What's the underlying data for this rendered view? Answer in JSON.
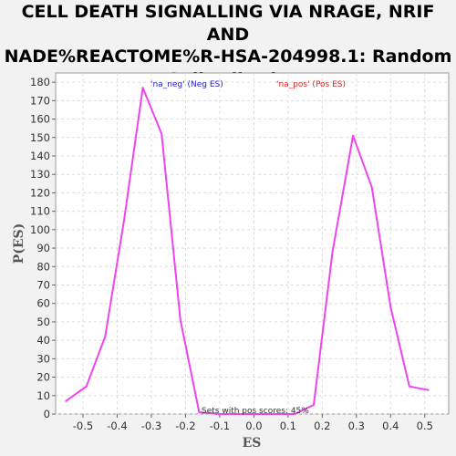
{
  "chart_data": {
    "type": "line",
    "title_lines": [
      "CELL DEATH SIGNALLING VIA NRAGE, NRIF AND",
      "NADE%REACTOME%R-HSA-204998.1: Random",
      "ES distribution"
    ],
    "xlabel": "ES",
    "ylabel": "P(ES)",
    "xlim": [
      -0.58,
      0.57
    ],
    "ylim": [
      0,
      185
    ],
    "x_ticks": [
      "-0.5",
      "-0.4",
      "-0.3",
      "-0.2",
      "-0.1",
      "0.0",
      "0.1",
      "0.2",
      "0.3",
      "0.4",
      "0.5"
    ],
    "y_ticks": [
      "0",
      "10",
      "20",
      "30",
      "40",
      "50",
      "60",
      "70",
      "80",
      "90",
      "100",
      "110",
      "120",
      "130",
      "140",
      "150",
      "160",
      "170",
      "180"
    ],
    "grid": true,
    "legend": [
      {
        "label": "'na_neg' (Neg ES)",
        "color": "#2222cc"
      },
      {
        "label": "'na_pos' (Pos ES)",
        "color": "#dd2222"
      }
    ],
    "annotation": "Sets with pos scores: 45%",
    "series": [
      {
        "color": "#ee44ee",
        "points": [
          [
            -0.55,
            7
          ],
          [
            -0.49,
            15
          ],
          [
            -0.435,
            42
          ],
          [
            -0.38,
            105
          ],
          [
            -0.325,
            177
          ],
          [
            -0.27,
            152
          ],
          [
            -0.215,
            51
          ],
          [
            -0.16,
            1
          ],
          [
            -0.105,
            0
          ],
          [
            -0.05,
            0
          ],
          [
            0.005,
            0
          ],
          [
            0.06,
            0
          ],
          [
            0.12,
            0
          ],
          [
            0.175,
            5
          ],
          [
            0.23,
            88
          ],
          [
            0.29,
            151
          ],
          [
            0.345,
            123
          ],
          [
            0.4,
            58
          ],
          [
            0.455,
            15
          ],
          [
            0.51,
            13
          ]
        ]
      }
    ]
  }
}
